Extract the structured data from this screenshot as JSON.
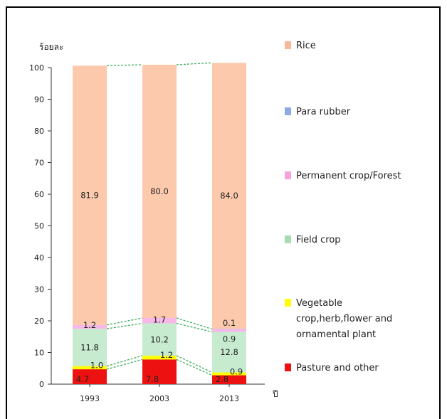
{
  "chart_data": {
    "type": "bar",
    "stacked": true,
    "ylabel": "ร้อยละ",
    "xlabel": "ปี",
    "ylim": [
      0,
      100
    ],
    "yticks": [
      0,
      10,
      20,
      30,
      40,
      50,
      60,
      70,
      80,
      90,
      100
    ],
    "categories": [
      "1993",
      "2003",
      "2013"
    ],
    "series": [
      {
        "name": "Pasture and other",
        "color": "#ee1111",
        "values": [
          4.7,
          7.8,
          2.8
        ],
        "labels": [
          "4.7",
          "7.8",
          "2.8"
        ]
      },
      {
        "name": "Vegetable crop,herb,flower and ornamental plant",
        "color": "#ffff00",
        "values": [
          1.0,
          1.2,
          0.9
        ],
        "labels": [
          "1.0",
          "1.2",
          "0.9"
        ]
      },
      {
        "name": "Field crop",
        "color": "#c7ebcf",
        "values": [
          11.8,
          10.2,
          12.8
        ],
        "labels": [
          "11.8",
          "10.2",
          "12.8"
        ]
      },
      {
        "name": "Permanent crop/Forest",
        "color": "#f5b8e8",
        "values": [
          1.2,
          1.7,
          0.9
        ],
        "labels": [
          "1.2",
          "1.7",
          "0.9"
        ]
      },
      {
        "name": "Para rubber",
        "color": "#9fb6e8",
        "values": [
          0,
          0,
          0.1
        ],
        "labels": [
          "",
          "",
          "0.1"
        ]
      },
      {
        "name": "Rice",
        "color": "#fcc9ad",
        "values": [
          81.9,
          80.0,
          84.0
        ],
        "labels": [
          "81.9",
          "80.0",
          "84.0"
        ]
      }
    ],
    "legend": [
      {
        "name": "Rice",
        "lines": [
          "Rice"
        ],
        "color": "#f7b89a"
      },
      {
        "name": "Para rubber",
        "lines": [
          "Para rubber"
        ],
        "color": "#8fa9e3"
      },
      {
        "name": "Permanent crop/Forest",
        "lines": [
          "Permanent crop/Forest"
        ],
        "color": "#f5a3e0"
      },
      {
        "name": "Field crop",
        "lines": [
          "Field crop"
        ],
        "color": "#a6dcb2"
      },
      {
        "name": "Vegetable crop,herb,flower and ornamental plant",
        "lines": [
          "Vegetable",
          "crop,herb,flower and",
          "ornamental plant"
        ],
        "color": "#ffff00"
      },
      {
        "name": "Pasture and other",
        "lines": [
          "Pasture and other"
        ],
        "color": "#ee1111"
      }
    ],
    "legend_placement": "right",
    "grid": false
  }
}
